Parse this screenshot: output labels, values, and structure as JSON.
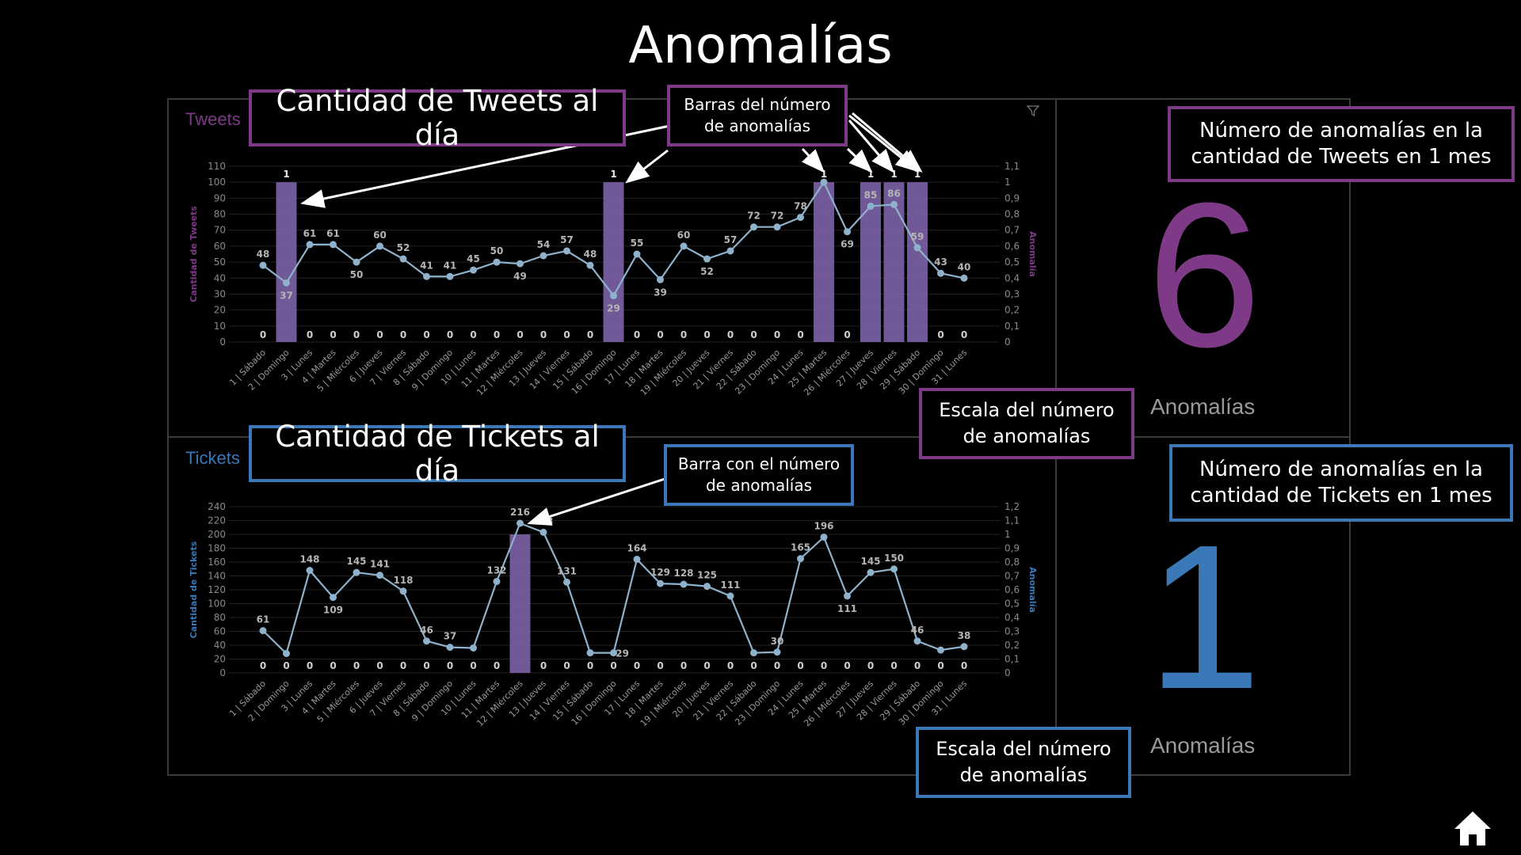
{
  "title": "Anomalías",
  "colors": {
    "tweets": "#7e3a86",
    "tickets": "#3a78b8",
    "bar": "#7b5fa3",
    "line": "#8fb2cc",
    "label": "#b5b5b5"
  },
  "tweets_panel": {
    "label": "Tweets",
    "kpi_value": "6",
    "kpi_label": "Anomalías"
  },
  "tickets_panel": {
    "label": "Tickets",
    "kpi_value": "1",
    "kpi_label": "Anomalías"
  },
  "callouts": {
    "tweets_title": "Cantidad de Tweets al día",
    "tweets_bars_line1": "Barras del número",
    "tweets_bars_line2": "de anomalías",
    "tweets_kpi_line1": "Número de anomalías en la",
    "tweets_kpi_line2": "cantidad de Tweets en 1 mes",
    "tweets_scale_line1": "Escala del número",
    "tweets_scale_line2": "de anomalías",
    "tickets_title": "Cantidad de Tickets al día",
    "tickets_bar_line1": "Barra con el número",
    "tickets_bar_line2": "de anomalías",
    "tickets_kpi_line1": "Número de anomalías en la",
    "tickets_kpi_line2": "cantidad de Tickets en 1 mes",
    "tickets_scale_line1": "Escala del número",
    "tickets_scale_line2": "de anomalías"
  },
  "icons": {
    "home": "home-icon",
    "filter": "filter-icon"
  },
  "chart_data": [
    {
      "type": "line",
      "categories": [
        "1 | Sábado",
        "2 | Domingo",
        "3 | Lunes",
        "4 | Martes",
        "5 | Miércoles",
        "6 | Jueves",
        "7 | Viernes",
        "8 | Sábado",
        "9 | Domingo",
        "10 | Lunes",
        "11 | Martes",
        "12 | Miércoles",
        "13 | Jueves",
        "14 | Viernes",
        "15 | Sábado",
        "16 | Domingo",
        "17 | Lunes",
        "18 | Martes",
        "19 | Miércoles",
        "20 | Jueves",
        "21 | Viernes",
        "22 | Sábado",
        "23 | Domingo",
        "24 | Lunes",
        "25 | Martes",
        "26 | Miércoles",
        "27 | Jueves",
        "28 | Viernes",
        "29 | Sábado",
        "30 | Domingo",
        "31 | Lunes"
      ],
      "ylabel": "Cantidad de Tweets",
      "y2label": "Anomalía",
      "ylim": [
        0,
        110
      ],
      "y2lim": [
        0,
        1.1
      ],
      "yticks": [
        "0",
        "10",
        "20",
        "30",
        "40",
        "50",
        "60",
        "70",
        "80",
        "90",
        "100",
        "110"
      ],
      "y2ticks": [
        "0",
        "0,1",
        "0,2",
        "0,3",
        "0,4",
        "0,5",
        "0,6",
        "0,7",
        "0,8",
        "0,9",
        "1",
        "1,1"
      ],
      "series": [
        {
          "values": [
            48,
            37,
            61,
            61,
            50,
            60,
            52,
            41,
            41,
            45,
            50,
            49,
            54,
            57,
            48,
            29,
            55,
            39,
            60,
            52,
            57,
            72,
            72,
            78,
            100,
            69,
            85,
            86,
            59,
            43,
            40
          ]
        },
        {
          "values": [
            0,
            1,
            0,
            0,
            0,
            0,
            0,
            0,
            0,
            0,
            0,
            0,
            0,
            0,
            0,
            1,
            0,
            0,
            0,
            0,
            0,
            0,
            0,
            0,
            1,
            0,
            1,
            1,
            1,
            0,
            0
          ]
        }
      ],
      "point_labels": [
        "48",
        "37",
        "61",
        "61",
        "50",
        "60",
        "52",
        "41",
        "41",
        "45",
        "50",
        "49",
        "54",
        "57",
        "48",
        "29",
        "55",
        "39",
        "60",
        "52",
        "57",
        "72",
        "72",
        "78",
        "",
        "69",
        "85",
        "86",
        "59",
        "43",
        "40"
      ],
      "bar_labels": [
        "0",
        "1",
        "0",
        "0",
        "0",
        "0",
        "0",
        "0",
        "0",
        "0",
        "0",
        "0",
        "0",
        "0",
        "0",
        "1",
        "0",
        "0",
        "0",
        "0",
        "0",
        "0",
        "0",
        "0",
        "1",
        "0",
        "1",
        "1",
        "1",
        "0",
        "0"
      ]
    },
    {
      "type": "line",
      "categories": [
        "1 | Sábado",
        "2 | Domingo",
        "3 | Lunes",
        "4 | Martes",
        "5 | Miércoles",
        "6 | Jueves",
        "7 | Viernes",
        "8 | Sábado",
        "9 | Domingo",
        "10 | Lunes",
        "11 | Martes",
        "12 | Miércoles",
        "13 | Jueves",
        "14 | Viernes",
        "15 | Sábado",
        "16 | Domingo",
        "17 | Lunes",
        "18 | Martes",
        "19 | Miércoles",
        "20 | Jueves",
        "21 | Viernes",
        "22 | Sábado",
        "23 | Domingo",
        "24 | Lunes",
        "25 | Martes",
        "26 | Miércoles",
        "27 | Jueves",
        "28 | Viernes",
        "29 | Sábado",
        "30 | Domingo",
        "31 | Lunes"
      ],
      "ylabel": "Cantidad de Tickets",
      "y2label": "Anomalía",
      "ylim": [
        0,
        240
      ],
      "y2lim": [
        0,
        1.2
      ],
      "yticks": [
        "0",
        "20",
        "40",
        "60",
        "80",
        "100",
        "120",
        "140",
        "160",
        "180",
        "200",
        "220",
        "240"
      ],
      "y2ticks": [
        "0",
        "0,1",
        "0,2",
        "0,3",
        "0,4",
        "0,5",
        "0,6",
        "0,7",
        "0,8",
        "0,9",
        "1",
        "1,1",
        "1,2"
      ],
      "series": [
        {
          "values": [
            61,
            28,
            148,
            109,
            145,
            141,
            118,
            46,
            37,
            36,
            132,
            216,
            203,
            131,
            29,
            29,
            164,
            129,
            128,
            125,
            111,
            29,
            30,
            165,
            196,
            111,
            145,
            150,
            46,
            33,
            38
          ]
        },
        {
          "values": [
            0,
            0,
            0,
            0,
            0,
            0,
            0,
            0,
            0,
            0,
            0,
            1,
            0,
            0,
            0,
            0,
            0,
            0,
            0,
            0,
            0,
            0,
            0,
            0,
            0,
            0,
            0,
            0,
            0,
            0,
            0
          ]
        }
      ],
      "point_labels": [
        "61",
        "",
        "148",
        "109",
        "145",
        "141",
        "118",
        "46",
        "37",
        "",
        "132",
        "216",
        "203",
        "131",
        "",
        "",
        "164",
        "129",
        "128",
        "125",
        "111",
        "",
        "30",
        "165",
        "196",
        "111",
        "145",
        "150",
        "46",
        "",
        "38"
      ],
      "extra_labels": [
        "29"
      ],
      "bar_labels": [
        "0",
        "0",
        "0",
        "0",
        "0",
        "0",
        "0",
        "0",
        "0",
        "0",
        "0",
        "",
        "0",
        "0",
        "0",
        "0",
        "0",
        "0",
        "0",
        "0",
        "0",
        "0",
        "0",
        "0",
        "0",
        "0",
        "0",
        "0",
        "0",
        "0",
        "0"
      ]
    }
  ]
}
